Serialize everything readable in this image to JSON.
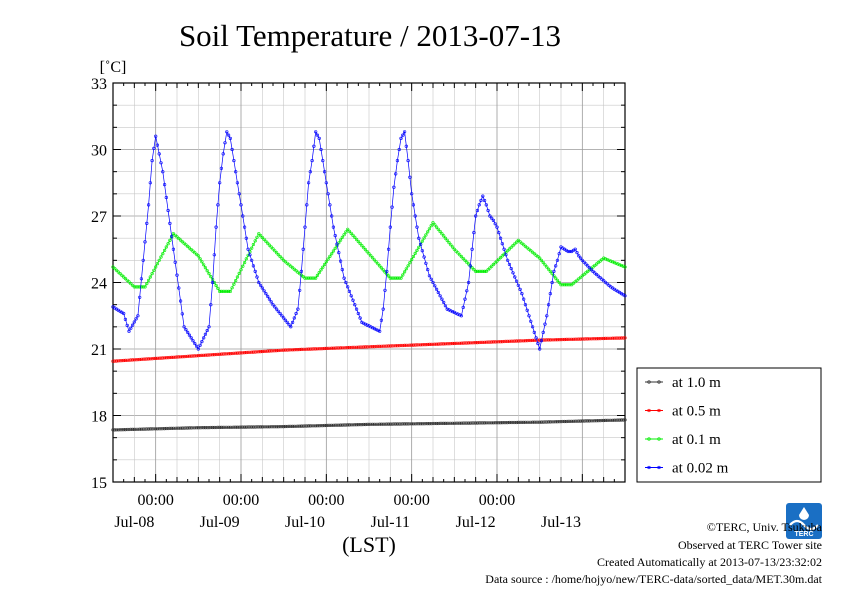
{
  "chart_data": {
    "type": "line",
    "title": "Soil Temperature / 2013-07-13",
    "ylabel": "[˚C]",
    "xlabel": "(LST)",
    "ylim": [
      15,
      33
    ],
    "xlim": [
      0,
      144
    ],
    "x_unit": "hours since 2013-07-07 12:00 LST",
    "yticks": [
      15,
      18,
      21,
      24,
      27,
      30,
      33
    ],
    "ytick_labels": [
      "15",
      "18",
      "21",
      "24",
      "27",
      "30",
      "33"
    ],
    "xticks": [
      {
        "x": 12,
        "time": "00:00",
        "date": "Jul-08"
      },
      {
        "x": 36,
        "time": "00:00",
        "date": "Jul-09"
      },
      {
        "x": 60,
        "time": "00:00",
        "date": "Jul-10"
      },
      {
        "x": 84,
        "time": "00:00",
        "date": "Jul-11"
      },
      {
        "x": 108,
        "time": "00:00",
        "date": "Jul-12"
      },
      {
        "x": 132,
        "time": "",
        "date": "Jul-13"
      }
    ],
    "grid": true,
    "legend_position": "right, outside plot",
    "series": [
      {
        "name": "at 1.0 m",
        "color": "#333333",
        "x": [
          0,
          24,
          48,
          72,
          96,
          120,
          144
        ],
        "y": [
          17.35,
          17.45,
          17.5,
          17.6,
          17.65,
          17.7,
          17.8
        ]
      },
      {
        "name": "at 0.5 m",
        "color": "#ff0000",
        "x": [
          0,
          24,
          48,
          72,
          96,
          120,
          144
        ],
        "y": [
          20.45,
          20.7,
          20.95,
          21.1,
          21.25,
          21.4,
          21.5
        ]
      },
      {
        "name": "at 0.1 m",
        "color": "#00ee00",
        "x": [
          0,
          6,
          9,
          17,
          24,
          30,
          33,
          41,
          48,
          54,
          57,
          66,
          72,
          78,
          81,
          90,
          96,
          102,
          105,
          114,
          120,
          126,
          129,
          138,
          144
        ],
        "y": [
          24.7,
          23.8,
          23.8,
          26.2,
          25.2,
          23.6,
          23.6,
          26.2,
          25.0,
          24.2,
          24.2,
          26.4,
          25.3,
          24.2,
          24.2,
          26.7,
          25.5,
          24.5,
          24.5,
          25.9,
          25.1,
          23.9,
          23.9,
          25.1,
          24.7
        ]
      },
      {
        "name": "at 0.02 m",
        "color": "#0000ff",
        "x": [
          0,
          3,
          4.5,
          7,
          10,
          11,
          12,
          14,
          17,
          20,
          24,
          27,
          28,
          29,
          30,
          31,
          32,
          33,
          34,
          35,
          36,
          38,
          41,
          45,
          50,
          52,
          53,
          54,
          55,
          56,
          57,
          58,
          59,
          60,
          62,
          65,
          70,
          75,
          76,
          77,
          78,
          79,
          80,
          81,
          82,
          83,
          84,
          86,
          89,
          94,
          98,
          100,
          101,
          102,
          103,
          104,
          105,
          106,
          107,
          108,
          111,
          115,
          120,
          122,
          124,
          125,
          126,
          127,
          128,
          129,
          130,
          131,
          132,
          135,
          140,
          144
        ],
        "y": [
          22.9,
          22.6,
          21.8,
          22.5,
          27.5,
          29.5,
          30.6,
          29.0,
          25.5,
          22.0,
          21.0,
          22.0,
          24.0,
          26.5,
          28.5,
          29.8,
          30.8,
          30.5,
          29.5,
          28.5,
          27.5,
          25.5,
          24.0,
          23.0,
          22.0,
          22.8,
          24.5,
          26.5,
          28.5,
          29.5,
          30.8,
          30.5,
          29.5,
          28.5,
          26.5,
          24.2,
          22.2,
          21.8,
          22.8,
          24.5,
          26.5,
          28.3,
          29.5,
          30.5,
          30.8,
          29.5,
          28.0,
          26.0,
          24.3,
          22.8,
          22.5,
          24.0,
          25.5,
          27.0,
          27.5,
          27.9,
          27.5,
          27.0,
          26.8,
          26.5,
          25.0,
          23.5,
          21.0,
          22.5,
          24.5,
          25.0,
          25.6,
          25.5,
          25.4,
          25.4,
          25.5,
          25.2,
          25.0,
          24.5,
          23.8,
          23.4
        ]
      }
    ]
  },
  "credits": {
    "line1": "©TERC, Univ. Tsukuba",
    "line2": "Observed at TERC Tower site",
    "line3": "Created Automatically at 2013-07-13/23:32:02",
    "line4": "Data source : /home/hojyo/new/TERC-data/sorted_data/MET.30m.dat",
    "logo_text": "TERC",
    "logo_color": "#1a6fc4"
  }
}
